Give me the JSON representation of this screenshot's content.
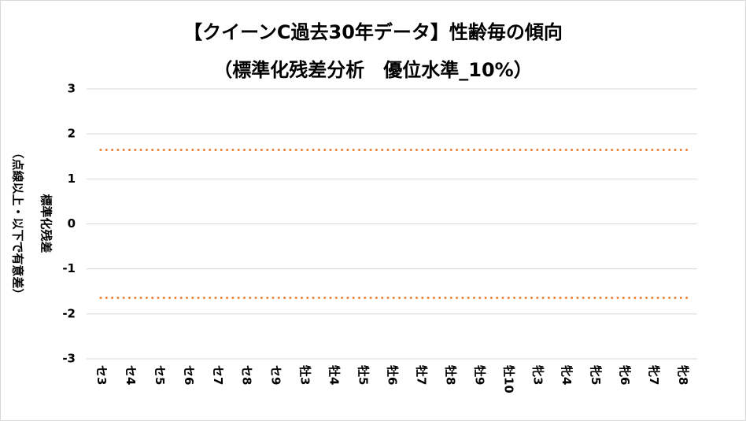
{
  "chart_data": {
    "type": "line",
    "title": [
      "【クイーンC過去30年データ】性齢毎の傾向",
      "（標準化残差分析　優位水準_10%）"
    ],
    "y_label": [
      "標準化残差",
      "（点線以上・以下で有意差）"
    ],
    "categories": [
      "セ3",
      "セ4",
      "セ5",
      "セ6",
      "セ7",
      "セ8",
      "セ9",
      "牡3",
      "牡4",
      "牡5",
      "牡6",
      "牡7",
      "牡8",
      "牡9",
      "牡10",
      "牝3",
      "牝4",
      "牝5",
      "牝6",
      "牝7",
      "牝8"
    ],
    "ylim": [
      -3,
      3
    ],
    "yticks": [
      -3,
      -2,
      -1,
      0,
      1,
      2,
      3
    ],
    "grid": true,
    "reference_lines": [
      {
        "value": 1.645,
        "color": "#ed7d31"
      },
      {
        "value": -1.645,
        "color": "#ed7d31"
      }
    ]
  }
}
